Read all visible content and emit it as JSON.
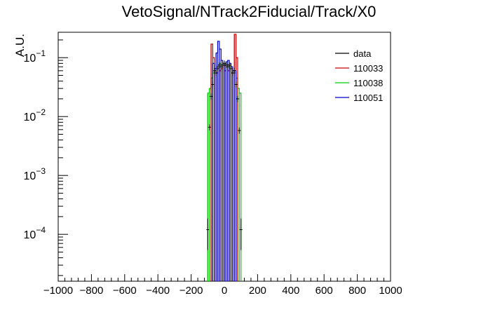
{
  "chart_data": {
    "type": "histogram",
    "title": "VetoSignal/NTrack2Fiducial/Track/X0",
    "xlabel": "",
    "ylabel": "A.U.",
    "xlim": [
      -1000,
      1000
    ],
    "ylim": [
      1.6e-05,
      0.27
    ],
    "yscale": "log",
    "x_ticks": [
      {
        "value": -1000,
        "label": "−1000"
      },
      {
        "value": -800,
        "label": "−800"
      },
      {
        "value": -600,
        "label": "−600"
      },
      {
        "value": -400,
        "label": "−400"
      },
      {
        "value": -200,
        "label": "−200"
      },
      {
        "value": 0,
        "label": "0"
      },
      {
        "value": 200,
        "label": "200"
      },
      {
        "value": 400,
        "label": "400"
      },
      {
        "value": 600,
        "label": "600"
      },
      {
        "value": 800,
        "label": "800"
      },
      {
        "value": 1000,
        "label": "1000"
      }
    ],
    "y_ticks": [
      {
        "value": 0.1,
        "base": "10",
        "exp": "−1"
      },
      {
        "value": 0.01,
        "base": "10",
        "exp": "−2"
      },
      {
        "value": 0.001,
        "base": "10",
        "exp": "−3"
      },
      {
        "value": 0.0001,
        "base": "10",
        "exp": "−4"
      }
    ],
    "legend_position": "top-right",
    "series": [
      {
        "name": "data",
        "color": "#000000",
        "style": "points",
        "x": [
          -100,
          -90,
          -80,
          -70,
          -60,
          -50,
          -40,
          -30,
          -20,
          -10,
          0,
          10,
          20,
          30,
          40,
          50,
          60,
          70,
          80,
          90,
          100,
          110
        ],
        "values": [
          0.00012,
          0.0066,
          0.022,
          0.035,
          0.06,
          0.055,
          0.065,
          0.075,
          0.07,
          0.075,
          0.08,
          0.075,
          0.07,
          0.075,
          0.065,
          0.055,
          0.06,
          0.035,
          0.02,
          0.0058,
          0.00012,
          0
        ]
      },
      {
        "name": "110033",
        "color": "#cc0000",
        "style": "step",
        "edges": [
          -80,
          -70,
          -60,
          -50,
          -40,
          -30,
          -20,
          -10,
          0,
          10,
          20,
          30,
          40,
          50,
          60,
          70,
          80
        ],
        "values": [
          0.17,
          0.1,
          0.065,
          0.055,
          0.07,
          0.06,
          0.065,
          0.075,
          0.06,
          0.075,
          0.06,
          0.075,
          0.065,
          0.055,
          0.25,
          0.1
        ]
      },
      {
        "name": "110038",
        "color": "#00cc00",
        "style": "step",
        "edges": [
          -100,
          -90,
          -80,
          -70,
          -60,
          -50,
          -40,
          -30,
          -20,
          -10,
          0,
          10,
          20,
          30,
          40,
          50,
          60,
          70,
          80,
          90,
          100
        ],
        "values": [
          0.025,
          0.03,
          0.045,
          0.055,
          0.06,
          0.07,
          0.075,
          0.08,
          0.075,
          0.08,
          0.075,
          0.08,
          0.075,
          0.07,
          0.065,
          0.06,
          0.055,
          0.045,
          0.03,
          0.025
        ]
      },
      {
        "name": "110051",
        "color": "#0000cc",
        "style": "step",
        "edges": [
          -70,
          -60,
          -50,
          -40,
          -30,
          -20,
          -10,
          0,
          10,
          20,
          30,
          40,
          50,
          60,
          70
        ],
        "values": [
          0.08,
          0.065,
          0.12,
          0.19,
          0.14,
          0.09,
          0.08,
          0.075,
          0.085,
          0.09,
          0.08,
          0.07,
          0.06,
          0.06
        ]
      }
    ]
  }
}
